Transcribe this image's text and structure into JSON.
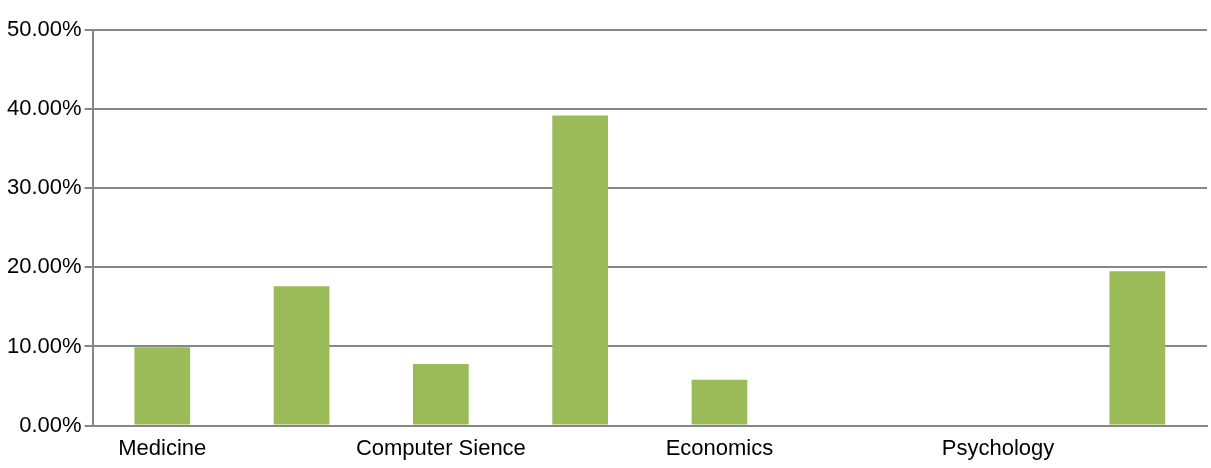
{
  "chart_data": {
    "type": "bar",
    "categories": [
      "Medicine",
      null,
      "Computer Sience",
      null,
      "Economics",
      null,
      "Psychology",
      null
    ],
    "values": [
      9.9,
      17.6,
      7.8,
      39.2,
      5.8,
      0,
      0,
      19.5
    ],
    "color": "#9bbb59",
    "ylim": [
      0,
      50
    ],
    "yticks": [
      {
        "value": 0,
        "label": "0.00%"
      },
      {
        "value": 10,
        "label": "10.00%"
      },
      {
        "value": 20,
        "label": "20.00%"
      },
      {
        "value": 30,
        "label": "30.00%"
      },
      {
        "value": 40,
        "label": "40.00%"
      },
      {
        "value": 50,
        "label": "50.00%"
      }
    ],
    "grid": "y",
    "legend": false
  }
}
